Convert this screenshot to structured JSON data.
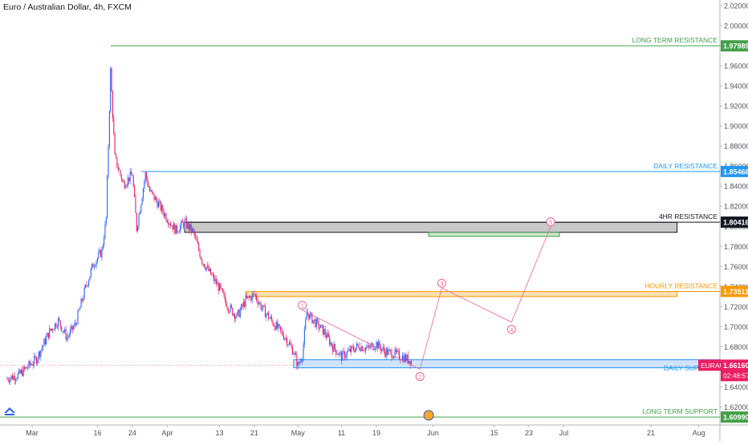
{
  "chart_title": "Euro / Australian Dollar, 4h, FXCM",
  "symbol_label": "EURAUD",
  "countdown": "02:48:57",
  "logo_icon": "tradingview-logo-icon",
  "colors": {
    "up": "#2962ff",
    "down": "#e91e63",
    "long_term": "#43a047",
    "daily": "#2196f3",
    "hourly": "#ff9800",
    "hr4": "#131722",
    "projection": "#f06292",
    "current": "#e91e63",
    "target_zone": "#81c784"
  },
  "chart_data": {
    "type": "candlestick",
    "title": "Euro / Australian Dollar, 4h, FXCM",
    "ylim": [
      1.6,
      2.03
    ],
    "y_ticks": [
      "2.02000",
      "2.00000",
      "1.98000",
      "1.96000",
      "1.94000",
      "1.92000",
      "1.90000",
      "1.88000",
      "1.86000",
      "1.84000",
      "1.82000",
      "1.80000",
      "1.78000",
      "1.76000",
      "1.74000",
      "1.72000",
      "1.70000",
      "1.68000",
      "1.66000",
      "1.64000",
      "1.62000",
      "1.60000"
    ],
    "x_ticks": [
      "Mar",
      "16",
      "24",
      "Apr",
      "13",
      "21",
      "May",
      "11",
      "19",
      "Jun",
      "15",
      "23",
      "Jul",
      "21",
      "Aug"
    ],
    "x_dates": [
      "2020-03-01",
      "2020-03-16",
      "2020-03-24",
      "2020-04-01",
      "2020-04-13",
      "2020-04-21",
      "2020-05-01",
      "2020-05-11",
      "2020-05-19",
      "2020-06-01",
      "2020-06-15",
      "2020-06-23",
      "2020-07-01",
      "2020-07-21",
      "2020-08-01"
    ],
    "price_path": [
      [
        "2020-02-24",
        1.648
      ],
      [
        "2020-02-27",
        1.652
      ],
      [
        "2020-03-02",
        1.668
      ],
      [
        "2020-03-05",
        1.695
      ],
      [
        "2020-03-07",
        1.706
      ],
      [
        "2020-03-09",
        1.689
      ],
      [
        "2020-03-11",
        1.703
      ],
      [
        "2020-03-13",
        1.735
      ],
      [
        "2020-03-15",
        1.762
      ],
      [
        "2020-03-17",
        1.775
      ],
      [
        "2020-03-18",
        1.808
      ],
      [
        "2020-03-19",
        1.955
      ],
      [
        "2020-03-20",
        1.868
      ],
      [
        "2020-03-22",
        1.842
      ],
      [
        "2020-03-24",
        1.852
      ],
      [
        "2020-03-25",
        1.798
      ],
      [
        "2020-03-27",
        1.852
      ],
      [
        "2020-03-28",
        1.835
      ],
      [
        "2020-03-30",
        1.822
      ],
      [
        "2020-04-01",
        1.808
      ],
      [
        "2020-04-03",
        1.796
      ],
      [
        "2020-04-05",
        1.804
      ],
      [
        "2020-04-07",
        1.794
      ],
      [
        "2020-04-09",
        1.766
      ],
      [
        "2020-04-11",
        1.752
      ],
      [
        "2020-04-13",
        1.738
      ],
      [
        "2020-04-15",
        1.72
      ],
      [
        "2020-04-17",
        1.71
      ],
      [
        "2020-04-19",
        1.726
      ],
      [
        "2020-04-21",
        1.732
      ],
      [
        "2020-04-23",
        1.717
      ],
      [
        "2020-04-26",
        1.7
      ],
      [
        "2020-04-28",
        1.69
      ],
      [
        "2020-04-30",
        1.675
      ],
      [
        "2020-05-01",
        1.661
      ],
      [
        "2020-05-02",
        1.672
      ],
      [
        "2020-05-03",
        1.714
      ],
      [
        "2020-05-05",
        1.704
      ],
      [
        "2020-05-07",
        1.695
      ],
      [
        "2020-05-09",
        1.68
      ],
      [
        "2020-05-11",
        1.67
      ],
      [
        "2020-05-13",
        1.676
      ],
      [
        "2020-05-15",
        1.681
      ],
      [
        "2020-05-17",
        1.678
      ],
      [
        "2020-05-19",
        1.683
      ],
      [
        "2020-05-21",
        1.675
      ],
      [
        "2020-05-23",
        1.673
      ],
      [
        "2020-05-25",
        1.67
      ],
      [
        "2020-05-27",
        1.666
      ]
    ],
    "levels": [
      {
        "label": "LONG TERM RESISTANCE",
        "price": "1.97989"
      },
      {
        "label": "DAILY RESISTANCE",
        "price": "1.85466"
      },
      {
        "label": "4HR RESISTANCE",
        "price": "1.80416"
      },
      {
        "label": "HOURLY RESISTANCE",
        "price": "1.73511"
      },
      {
        "label": "DAILY SUPPORT",
        "price": "1.65671"
      },
      {
        "label": "LONG TERM SUPPORT",
        "price": "1.60990"
      }
    ],
    "current_price": "1.66160",
    "zones": [
      {
        "name": "4hr-resistance",
        "from": "2020-04-05",
        "to": "2020-07-27",
        "y1": 1.794,
        "y2": 1.804
      },
      {
        "name": "hourly-resistance",
        "from": "2020-04-19",
        "to": "2020-07-27",
        "y1": 1.73,
        "y2": 1.735
      },
      {
        "name": "daily-support",
        "from": "2020-04-30",
        "to": "2020-08-31",
        "y1": 1.659,
        "y2": 1.667
      },
      {
        "name": "target",
        "from": "2020-05-31",
        "to": "2020-06-30",
        "y1": 1.79,
        "y2": 1.794
      }
    ],
    "projection_waves": [
      {
        "label": "1",
        "date": "2020-05-02",
        "price": 1.7165
      },
      {
        "label": "2",
        "date": "2020-05-29",
        "price": 1.6575
      },
      {
        "label": "3",
        "date": "2020-06-03",
        "price": 1.7385
      },
      {
        "label": "4",
        "date": "2020-06-19",
        "price": 1.7045
      },
      {
        "label": "5",
        "date": "2020-06-28",
        "price": 1.7997
      }
    ],
    "grid": false,
    "legend": "none"
  }
}
